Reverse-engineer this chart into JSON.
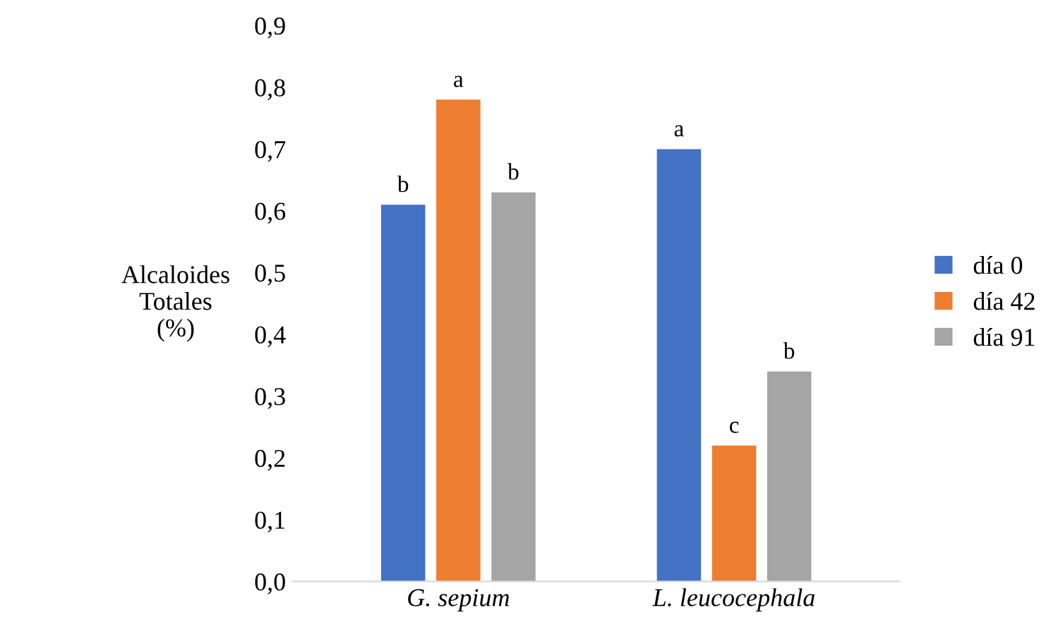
{
  "chart_data": {
    "type": "bar",
    "ylabel": "Alcaloides\nTotales\n(%)",
    "categories": [
      "G. sepium",
      "L. leucocephala"
    ],
    "series": [
      {
        "name": "día 0",
        "color": "#4472c4",
        "values": [
          0.61,
          0.7
        ],
        "value_labels": [
          "b",
          "a"
        ]
      },
      {
        "name": "día 42",
        "color": "#ed7d31",
        "values": [
          0.78,
          0.22
        ],
        "value_labels": [
          "a",
          "c"
        ]
      },
      {
        "name": "día 91",
        "color": "#a5a5a5",
        "values": [
          0.63,
          0.34
        ],
        "value_labels": [
          "b",
          "b"
        ]
      }
    ],
    "ylim": [
      0,
      0.9
    ],
    "yticks": [
      {
        "value": 0,
        "label": "0,0"
      },
      {
        "value": 0.1,
        "label": "0,1"
      },
      {
        "value": 0.2,
        "label": "0,2"
      },
      {
        "value": 0.3,
        "label": "0,3"
      },
      {
        "value": 0.4,
        "label": "0,4"
      },
      {
        "value": 0.5,
        "label": "0,5"
      },
      {
        "value": 0.6,
        "label": "0,6"
      },
      {
        "value": 0.7,
        "label": "0,7"
      },
      {
        "value": 0.8,
        "label": "0,8"
      },
      {
        "value": 0.9,
        "label": "0,9"
      }
    ],
    "grid": false,
    "legend": "right"
  }
}
